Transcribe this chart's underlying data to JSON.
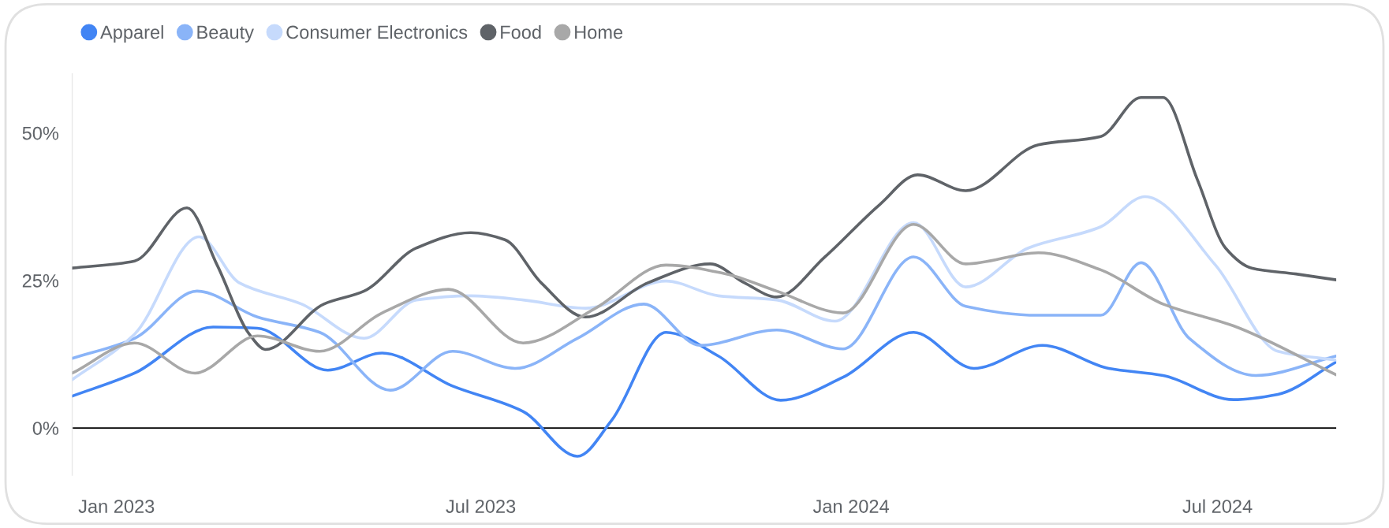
{
  "chart_data": {
    "type": "line",
    "xlim": [
      "2022-12-10",
      "2024-08-29"
    ],
    "xticks": [
      {
        "value": "2023-01-01",
        "label": "Jan 2023"
      },
      {
        "value": "2023-07-01",
        "label": "Jul 2023"
      },
      {
        "value": "2024-01-01",
        "label": "Jan 2024"
      },
      {
        "value": "2024-07-01",
        "label": "Jul 2024"
      }
    ],
    "ylim": [
      -8,
      60
    ],
    "yticks": [
      {
        "value": 0,
        "label": "0%"
      },
      {
        "value": 25,
        "label": "25%"
      },
      {
        "value": 50,
        "label": "50%"
      }
    ],
    "grid": false,
    "legend": "top left",
    "marker": "none",
    "line_style": "solid",
    "ref_lines": [
      {
        "axis": "y",
        "value": 0,
        "color": "#000000"
      }
    ],
    "series": [
      {
        "name": "Apparel",
        "color": "#4285f4",
        "x": [
          "2022-12-10",
          "2023-01-10",
          "2023-02-18",
          "2023-03-12",
          "2023-04-16",
          "2023-05-13",
          "2023-06-17",
          "2023-07-22",
          "2023-08-18",
          "2023-09-04",
          "2023-10-01",
          "2023-10-27",
          "2023-11-27",
          "2023-12-28",
          "2024-02-01",
          "2024-03-02",
          "2024-04-05",
          "2024-05-08",
          "2024-06-04",
          "2024-07-09",
          "2024-07-31",
          "2024-08-29"
        ],
        "values": [
          5.4,
          9.3,
          17.1,
          16.9,
          9.8,
          12.7,
          7.1,
          2.8,
          -4.8,
          1.3,
          16.2,
          12.2,
          4.7,
          8.6,
          16.2,
          10.1,
          14.0,
          10.1,
          8.9,
          4.8,
          5.7,
          11.2
        ]
      },
      {
        "name": "Beauty",
        "color": "#8ab4f8",
        "x": [
          "2022-12-10",
          "2023-01-10",
          "2023-02-10",
          "2023-03-12",
          "2023-04-12",
          "2023-05-17",
          "2023-06-17",
          "2023-07-18",
          "2023-08-18",
          "2023-09-20",
          "2023-10-18",
          "2023-11-25",
          "2023-12-28",
          "2024-02-01",
          "2024-02-27",
          "2024-04-03",
          "2024-05-04",
          "2024-05-24",
          "2024-06-17",
          "2024-07-20",
          "2024-08-29"
        ],
        "values": [
          11.8,
          15.2,
          23.2,
          18.8,
          16.2,
          6.4,
          13.0,
          10.1,
          15.2,
          21.0,
          14.0,
          16.6,
          13.4,
          29.0,
          20.6,
          19.1,
          19.1,
          28.0,
          15.2,
          8.9,
          12.2
        ]
      },
      {
        "name": "Consumer Electronics",
        "color": "#c6dafc",
        "x": [
          "2022-12-10",
          "2023-01-10",
          "2023-02-11",
          "2023-03-03",
          "2023-04-03",
          "2023-05-04",
          "2023-05-30",
          "2023-06-26",
          "2023-07-22",
          "2023-08-22",
          "2023-10-01",
          "2023-10-27",
          "2023-11-25",
          "2023-12-24",
          "2024-02-01",
          "2024-02-27",
          "2024-03-29",
          "2024-05-04",
          "2024-05-26",
          "2024-06-30",
          "2024-07-31",
          "2024-08-29"
        ],
        "values": [
          8.2,
          15.9,
          32.4,
          24.6,
          21.0,
          15.2,
          21.7,
          22.4,
          21.7,
          20.3,
          24.9,
          22.4,
          21.7,
          18.1,
          34.8,
          23.9,
          30.5,
          34.1,
          39.2,
          27.6,
          13.0,
          11.5
        ]
      },
      {
        "name": "Food",
        "color": "#5f6368",
        "x": [
          "2022-12-10",
          "2023-01-10",
          "2023-02-05",
          "2023-02-20",
          "2023-03-08",
          "2023-03-16",
          "2023-04-14",
          "2023-05-04",
          "2023-05-30",
          "2023-06-26",
          "2023-07-13",
          "2023-07-31",
          "2023-08-22",
          "2023-09-22",
          "2023-10-23",
          "2023-11-09",
          "2023-11-25",
          "2023-12-19",
          "2024-01-15",
          "2024-02-03",
          "2024-02-27",
          "2024-04-03",
          "2024-05-04",
          "2024-05-24",
          "2024-06-04",
          "2024-06-21",
          "2024-07-05",
          "2024-07-18",
          "2024-08-09",
          "2024-08-29"
        ],
        "values": [
          27.1,
          28.3,
          37.3,
          27.6,
          15.9,
          13.3,
          21.0,
          23.2,
          30.5,
          33.1,
          31.9,
          24.6,
          18.8,
          24.6,
          27.8,
          24.6,
          22.2,
          29.0,
          37.8,
          42.9,
          40.2,
          48.0,
          49.4,
          56.0,
          56.0,
          42.1,
          30.5,
          27.1,
          26.1,
          25.1
        ]
      },
      {
        "name": "Home",
        "color": "#a8a8a8",
        "x": [
          "2022-12-10",
          "2023-01-10",
          "2023-02-09",
          "2023-03-12",
          "2023-04-12",
          "2023-05-13",
          "2023-06-15",
          "2023-07-22",
          "2023-08-27",
          "2023-10-01",
          "2023-10-31",
          "2023-11-25",
          "2023-12-28",
          "2024-02-01",
          "2024-02-27",
          "2024-04-03",
          "2024-05-04",
          "2024-06-04",
          "2024-07-09",
          "2024-08-29"
        ],
        "values": [
          9.3,
          14.4,
          9.3,
          15.6,
          13.0,
          19.5,
          23.5,
          14.4,
          20.3,
          27.6,
          26.1,
          23.2,
          19.5,
          34.5,
          27.8,
          29.7,
          26.8,
          21.0,
          17.3,
          9.0
        ]
      }
    ]
  }
}
